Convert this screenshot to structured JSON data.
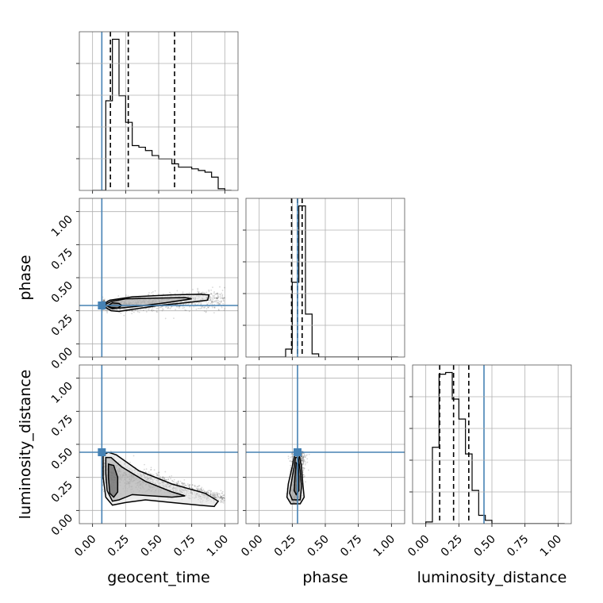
{
  "chart_data": {
    "type": "corner",
    "parameters": [
      "geocent_time",
      "phase",
      "luminosity_distance"
    ],
    "axis_range": [
      -0.1,
      1.1
    ],
    "tick_values": [
      0.0,
      0.25,
      0.5,
      0.75,
      1.0
    ],
    "tick_labels": [
      "0.00",
      "0.25",
      "0.50",
      "0.75",
      "1.00"
    ],
    "grid": true,
    "truths": {
      "values": [
        0.07,
        0.29,
        0.44
      ],
      "color": "#4682b4"
    },
    "diagonal": [
      {
        "parameter": "geocent_time",
        "bin_edges": [
          0.0,
          0.05,
          0.1,
          0.15,
          0.2,
          0.25,
          0.3,
          0.35,
          0.4,
          0.45,
          0.5,
          0.55,
          0.6,
          0.65,
          0.7,
          0.75,
          0.8,
          0.85,
          0.9,
          0.95,
          1.0,
          1.05
        ],
        "counts": [
          0.0,
          0.0,
          0.54,
          0.91,
          0.57,
          0.41,
          0.27,
          0.26,
          0.24,
          0.21,
          0.19,
          0.19,
          0.16,
          0.14,
          0.14,
          0.13,
          0.12,
          0.11,
          0.08,
          0.01,
          0.0
        ],
        "quantiles": [
          0.135,
          0.27,
          0.62
        ]
      },
      {
        "parameter": "phase",
        "bin_edges": [
          0.0,
          0.05,
          0.1,
          0.15,
          0.2,
          0.25,
          0.3,
          0.35,
          0.4,
          0.45,
          0.5,
          0.55,
          0.6,
          0.65,
          0.7,
          0.75,
          0.8,
          0.85,
          0.9,
          0.95,
          1.0,
          1.05
        ],
        "counts": [
          0.0,
          0.0,
          0.0,
          0.0,
          0.05,
          0.47,
          0.95,
          0.27,
          0.02,
          0.0,
          0.0,
          0.0,
          0.0,
          0.0,
          0.0,
          0.0,
          0.0,
          0.0,
          0.0,
          0.0,
          0.0
        ],
        "quantiles": [
          0.245,
          0.29,
          0.325
        ]
      },
      {
        "parameter": "luminosity_distance",
        "bin_edges": [
          0.0,
          0.05,
          0.1,
          0.15,
          0.2,
          0.25,
          0.3,
          0.35,
          0.4,
          0.45,
          0.5,
          0.55,
          0.6,
          0.65,
          0.7,
          0.75,
          0.8,
          0.85,
          0.9,
          0.95,
          1.0,
          1.05
        ],
        "counts": [
          0.01,
          0.46,
          0.9,
          0.91,
          0.75,
          0.63,
          0.42,
          0.2,
          0.05,
          0.02,
          0.0,
          0.0,
          0.0,
          0.0,
          0.0,
          0.0,
          0.0,
          0.0,
          0.0,
          0.0,
          0.0
        ],
        "quantiles": [
          0.105,
          0.21,
          0.325
        ]
      }
    ],
    "panels_2d": [
      {
        "x_param": "geocent_time",
        "y_param": "phase",
        "samples": {
          "x_range": [
            0.07,
            1.0
          ],
          "y_center": [
            0.29,
            0.34
          ],
          "y_spread": [
            0.04,
            0.09
          ]
        },
        "contours": [
          [
            [
              0.08,
              0.3
            ],
            [
              0.13,
              0.33
            ],
            [
              0.3,
              0.355
            ],
            [
              0.6,
              0.37
            ],
            [
              0.8,
              0.375
            ],
            [
              0.88,
              0.37
            ],
            [
              0.87,
              0.33
            ],
            [
              0.7,
              0.31
            ],
            [
              0.5,
              0.29
            ],
            [
              0.3,
              0.26
            ],
            [
              0.2,
              0.245
            ],
            [
              0.14,
              0.25
            ],
            [
              0.09,
              0.28
            ],
            [
              0.08,
              0.3
            ]
          ],
          [
            [
              0.1,
              0.3
            ],
            [
              0.14,
              0.32
            ],
            [
              0.25,
              0.34
            ],
            [
              0.45,
              0.345
            ],
            [
              0.7,
              0.35
            ],
            [
              0.75,
              0.34
            ],
            [
              0.55,
              0.31
            ],
            [
              0.35,
              0.285
            ],
            [
              0.2,
              0.27
            ],
            [
              0.14,
              0.275
            ],
            [
              0.1,
              0.29
            ],
            [
              0.1,
              0.3
            ]
          ],
          [
            [
              0.12,
              0.29
            ],
            [
              0.15,
              0.31
            ],
            [
              0.2,
              0.305
            ],
            [
              0.22,
              0.29
            ],
            [
              0.19,
              0.27
            ],
            [
              0.15,
              0.265
            ],
            [
              0.12,
              0.28
            ],
            [
              0.12,
              0.29
            ]
          ]
        ]
      },
      {
        "x_param": "geocent_time",
        "y_param": "luminosity_distance",
        "samples": {
          "x_range": [
            0.07,
            1.0
          ],
          "y_center": [
            0.3,
            0.09
          ],
          "y_spread": [
            0.12,
            0.04
          ]
        },
        "contours": [
          [
            [
              0.08,
              0.42
            ],
            [
              0.12,
              0.44
            ],
            [
              0.18,
              0.42
            ],
            [
              0.35,
              0.3
            ],
            [
              0.6,
              0.2
            ],
            [
              0.85,
              0.13
            ],
            [
              0.95,
              0.07
            ],
            [
              0.92,
              0.03
            ],
            [
              0.8,
              0.04
            ],
            [
              0.6,
              0.06
            ],
            [
              0.4,
              0.08
            ],
            [
              0.25,
              0.06
            ],
            [
              0.15,
              0.04
            ],
            [
              0.1,
              0.1
            ],
            [
              0.08,
              0.25
            ],
            [
              0.08,
              0.42
            ]
          ],
          [
            [
              0.1,
              0.4
            ],
            [
              0.14,
              0.4
            ],
            [
              0.22,
              0.33
            ],
            [
              0.4,
              0.22
            ],
            [
              0.6,
              0.14
            ],
            [
              0.7,
              0.11
            ],
            [
              0.6,
              0.1
            ],
            [
              0.45,
              0.11
            ],
            [
              0.3,
              0.12
            ],
            [
              0.2,
              0.08
            ],
            [
              0.15,
              0.07
            ],
            [
              0.11,
              0.15
            ],
            [
              0.1,
              0.28
            ],
            [
              0.1,
              0.4
            ]
          ],
          [
            [
              0.12,
              0.35
            ],
            [
              0.16,
              0.34
            ],
            [
              0.19,
              0.25
            ],
            [
              0.19,
              0.14
            ],
            [
              0.16,
              0.1
            ],
            [
              0.13,
              0.13
            ],
            [
              0.12,
              0.25
            ],
            [
              0.12,
              0.35
            ]
          ]
        ]
      },
      {
        "x_param": "phase",
        "y_param": "luminosity_distance",
        "samples": {
          "x_center": [
            0.27,
            0.3
          ],
          "x_spread": [
            0.04,
            0.05
          ],
          "y_range": [
            0.05,
            0.45
          ]
        },
        "contours": [
          [
            [
              0.27,
              0.43
            ],
            [
              0.3,
              0.43
            ],
            [
              0.32,
              0.33
            ],
            [
              0.33,
              0.2
            ],
            [
              0.34,
              0.1
            ],
            [
              0.31,
              0.05
            ],
            [
              0.24,
              0.05
            ],
            [
              0.21,
              0.1
            ],
            [
              0.22,
              0.2
            ],
            [
              0.25,
              0.33
            ],
            [
              0.27,
              0.43
            ]
          ],
          [
            [
              0.275,
              0.4
            ],
            [
              0.295,
              0.4
            ],
            [
              0.31,
              0.3
            ],
            [
              0.32,
              0.18
            ],
            [
              0.31,
              0.08
            ],
            [
              0.25,
              0.08
            ],
            [
              0.23,
              0.13
            ],
            [
              0.25,
              0.25
            ],
            [
              0.265,
              0.33
            ],
            [
              0.275,
              0.4
            ]
          ],
          [
            [
              0.28,
              0.36
            ],
            [
              0.295,
              0.35
            ],
            [
              0.3,
              0.25
            ],
            [
              0.3,
              0.15
            ],
            [
              0.28,
              0.12
            ],
            [
              0.265,
              0.15
            ],
            [
              0.27,
              0.25
            ],
            [
              0.28,
              0.36
            ]
          ]
        ]
      }
    ]
  }
}
